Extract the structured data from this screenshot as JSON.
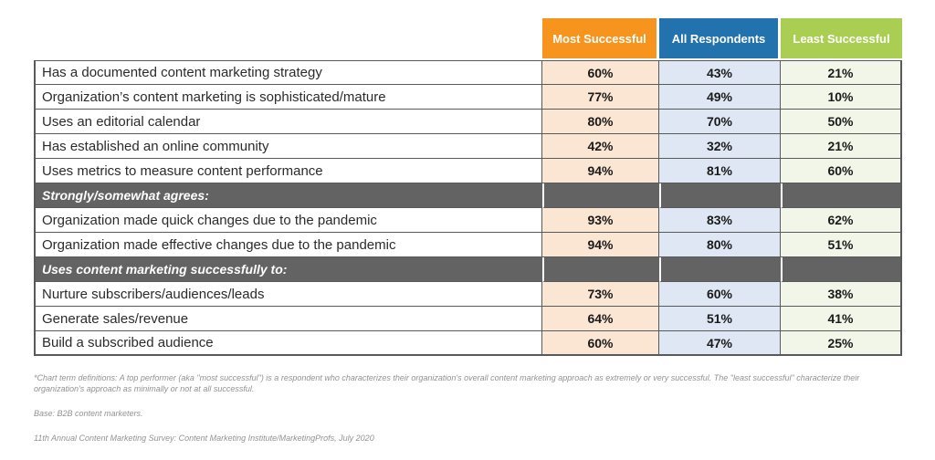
{
  "chart_data": {
    "type": "table",
    "columns": [
      {
        "label": "Most Successful",
        "header_color": "#F7941E",
        "cell_color": "#FBE5D3"
      },
      {
        "label": "All Respondents",
        "header_color": "#2272AE",
        "cell_color": "#DEE7F3"
      },
      {
        "label": "Least Successful",
        "header_color": "#AACE51",
        "cell_color": "#F2F6E8"
      }
    ],
    "section_color": "#636363",
    "border_color": "#58595B",
    "rows": [
      {
        "kind": "data",
        "label": "Has a documented content marketing strategy",
        "values": [
          "60%",
          "43%",
          "21%"
        ]
      },
      {
        "kind": "data",
        "label": "Organization’s content marketing is sophisticated/mature",
        "values": [
          "77%",
          "49%",
          "10%"
        ]
      },
      {
        "kind": "data",
        "label": "Uses an editorial calendar",
        "values": [
          "80%",
          "70%",
          "50%"
        ]
      },
      {
        "kind": "data",
        "label": "Has established an online community",
        "values": [
          "42%",
          "32%",
          "21%"
        ]
      },
      {
        "kind": "data",
        "label": "Uses metrics to measure content performance",
        "values": [
          "94%",
          "81%",
          "60%"
        ]
      },
      {
        "kind": "section",
        "label": "Strongly/somewhat agrees:"
      },
      {
        "kind": "data",
        "label": "Organization made quick changes due to the pandemic",
        "values": [
          "93%",
          "83%",
          "62%"
        ]
      },
      {
        "kind": "data",
        "label": "Organization made effective changes due to the pandemic",
        "values": [
          "94%",
          "80%",
          "51%"
        ]
      },
      {
        "kind": "section",
        "label": "Uses content marketing successfully to:"
      },
      {
        "kind": "data",
        "label": "Nurture subscribers/audiences/leads",
        "values": [
          "73%",
          "60%",
          "38%"
        ]
      },
      {
        "kind": "data",
        "label": "Generate sales/revenue",
        "values": [
          "64%",
          "51%",
          "41%"
        ]
      },
      {
        "kind": "data",
        "label": "Build a subscribed audience",
        "values": [
          "60%",
          "47%",
          "25%"
        ]
      }
    ],
    "footnotes": [
      "*Chart term definitions: A top performer (aka \"most successful\") is a respondent who characterizes their organization's overall content marketing approach as extremely or very successful. The \"least successful\" characterize their organization's approach as minimally or not at all successful.",
      "Base: B2B content marketers.",
      "11th Annual Content Marketing Survey: Content Marketing Institute/MarketingProfs, July 2020"
    ]
  }
}
